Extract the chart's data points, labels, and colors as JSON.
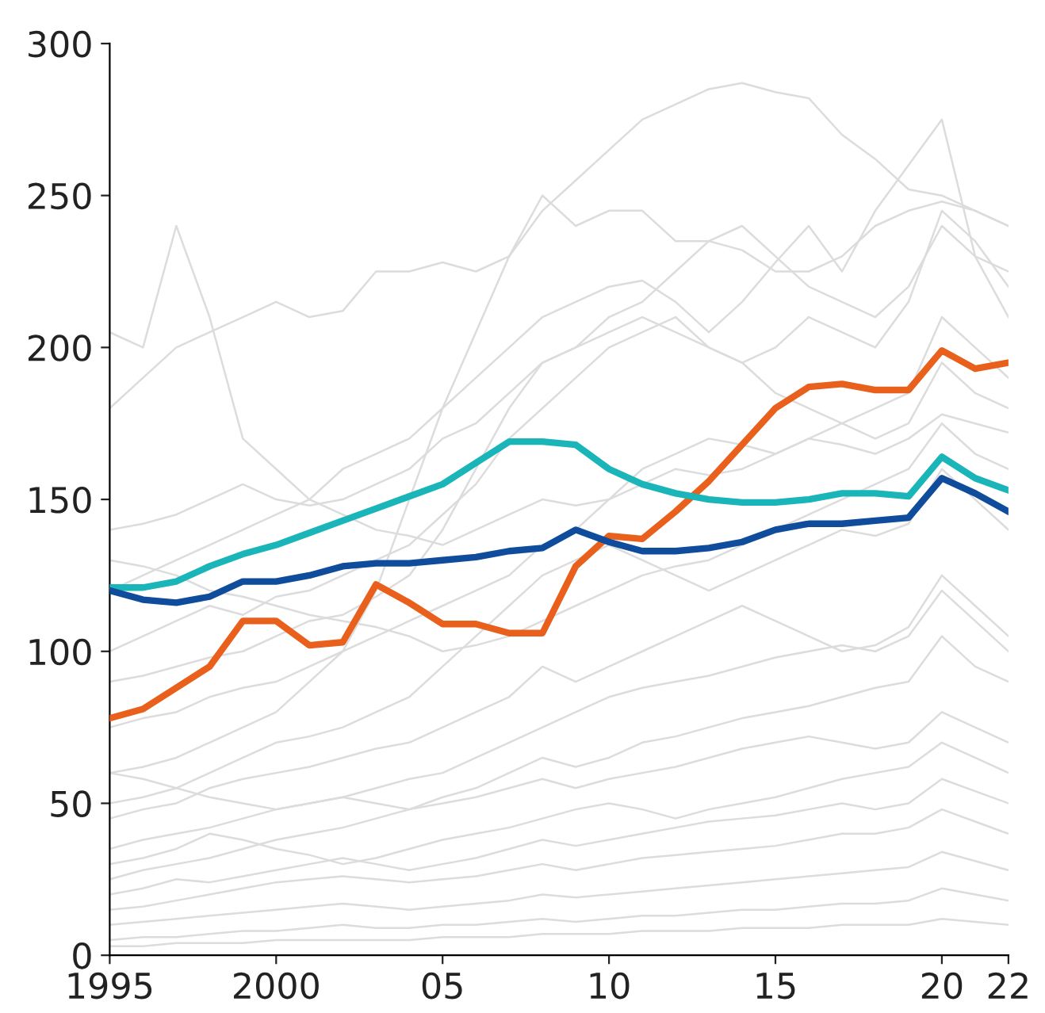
{
  "chart_data": {
    "type": "line",
    "x": [
      1995,
      1996,
      1997,
      1998,
      1999,
      2000,
      2001,
      2002,
      2003,
      2004,
      2005,
      2006,
      2007,
      2008,
      2009,
      2010,
      2011,
      2012,
      2013,
      2014,
      2015,
      2016,
      2017,
      2018,
      2019,
      2020,
      2021,
      2022
    ],
    "xlim": [
      1995,
      2022
    ],
    "xticks": [
      1995,
      2000,
      {
        "value": 2005,
        "label": "05"
      },
      {
        "value": 2010,
        "label": "10"
      },
      {
        "value": 2015,
        "label": "15"
      },
      {
        "value": 2020,
        "label": "20"
      },
      {
        "value": 2022,
        "label": "22"
      }
    ],
    "ylim": [
      0,
      300
    ],
    "yticks": [
      0,
      50,
      100,
      150,
      200,
      250,
      300
    ],
    "grid": false,
    "marker": "none",
    "line_style": "solid",
    "series": [
      {
        "color": "#dcdcdc",
        "values": [
          60,
          62,
          65,
          70,
          75,
          80,
          90,
          100,
          120,
          150,
          180,
          205,
          230,
          245,
          255,
          265,
          275,
          280,
          285,
          287,
          284,
          282,
          270,
          262,
          252,
          250,
          245,
          240
        ]
      },
      {
        "color": "#dcdcdc",
        "values": [
          205,
          200,
          240,
          210,
          170,
          160,
          150,
          145,
          140,
          138,
          135,
          140,
          145,
          150,
          148,
          150,
          155,
          160,
          158,
          160,
          165,
          170,
          168,
          165,
          170,
          178,
          175,
          172
        ]
      },
      {
        "color": "#dcdcdc",
        "values": [
          180,
          190,
          200,
          205,
          210,
          215,
          210,
          212,
          225,
          225,
          228,
          225,
          230,
          250,
          240,
          245,
          245,
          235,
          235,
          232,
          225,
          225,
          230,
          240,
          245,
          248,
          245,
          240
        ]
      },
      {
        "color": "#dcdcdc",
        "values": [
          120,
          125,
          130,
          135,
          140,
          145,
          150,
          160,
          165,
          170,
          180,
          190,
          200,
          210,
          215,
          220,
          222,
          215,
          205,
          215,
          228,
          240,
          225,
          245,
          260,
          275,
          230,
          210
        ]
      },
      {
        "color": "#dcdcdc",
        "values": [
          90,
          92,
          95,
          98,
          100,
          105,
          110,
          112,
          118,
          125,
          140,
          160,
          180,
          195,
          200,
          205,
          210,
          205,
          200,
          195,
          200,
          210,
          205,
          200,
          215,
          245,
          235,
          220
        ]
      },
      {
        "color": "#dcdcdc",
        "values": [
          140,
          142,
          145,
          150,
          155,
          150,
          148,
          150,
          155,
          160,
          170,
          175,
          185,
          195,
          200,
          210,
          215,
          225,
          235,
          240,
          230,
          220,
          215,
          210,
          220,
          240,
          230,
          225
        ]
      },
      {
        "color": "#dcdcdc",
        "values": [
          100,
          105,
          110,
          115,
          112,
          118,
          120,
          125,
          130,
          135,
          145,
          155,
          170,
          180,
          190,
          200,
          205,
          210,
          200,
          195,
          185,
          180,
          175,
          170,
          175,
          195,
          185,
          180
        ]
      },
      {
        "color": "#dcdcdc",
        "values": [
          75,
          78,
          80,
          85,
          88,
          90,
          95,
          100,
          105,
          110,
          115,
          120,
          125,
          135,
          140,
          150,
          160,
          165,
          170,
          168,
          165,
          170,
          175,
          180,
          185,
          210,
          200,
          190
        ]
      },
      {
        "color": "#dcdcdc",
        "values": [
          130,
          128,
          125,
          120,
          118,
          115,
          112,
          110,
          108,
          105,
          100,
          102,
          105,
          110,
          115,
          120,
          125,
          128,
          130,
          135,
          140,
          145,
          150,
          155,
          160,
          175,
          165,
          160
        ]
      },
      {
        "color": "#dcdcdc",
        "values": [
          50,
          52,
          55,
          60,
          65,
          70,
          72,
          75,
          80,
          85,
          95,
          105,
          115,
          125,
          130,
          135,
          130,
          125,
          120,
          125,
          130,
          135,
          140,
          138,
          142,
          160,
          150,
          140
        ]
      },
      {
        "color": "#dcdcdc",
        "values": [
          45,
          48,
          50,
          55,
          58,
          60,
          62,
          65,
          68,
          70,
          75,
          80,
          85,
          95,
          90,
          95,
          100,
          105,
          110,
          115,
          110,
          105,
          100,
          102,
          108,
          125,
          115,
          105
        ]
      },
      {
        "color": "#dcdcdc",
        "values": [
          60,
          58,
          55,
          52,
          50,
          48,
          50,
          52,
          55,
          58,
          60,
          65,
          70,
          75,
          80,
          85,
          88,
          90,
          92,
          95,
          98,
          100,
          102,
          100,
          105,
          120,
          110,
          100
        ]
      },
      {
        "color": "#dcdcdc",
        "values": [
          35,
          38,
          40,
          42,
          45,
          48,
          50,
          52,
          50,
          48,
          52,
          55,
          60,
          65,
          62,
          65,
          70,
          72,
          75,
          78,
          80,
          82,
          85,
          88,
          90,
          105,
          95,
          90
        ]
      },
      {
        "color": "#dcdcdc",
        "values": [
          25,
          28,
          30,
          32,
          35,
          38,
          40,
          42,
          45,
          48,
          50,
          52,
          55,
          58,
          55,
          58,
          60,
          62,
          65,
          68,
          70,
          72,
          70,
          68,
          70,
          80,
          75,
          70
        ]
      },
      {
        "color": "#dcdcdc",
        "values": [
          30,
          32,
          35,
          40,
          38,
          35,
          33,
          30,
          32,
          35,
          38,
          40,
          42,
          45,
          48,
          50,
          48,
          45,
          48,
          50,
          52,
          55,
          58,
          60,
          62,
          70,
          65,
          60
        ]
      },
      {
        "color": "#dcdcdc",
        "values": [
          20,
          22,
          25,
          24,
          26,
          28,
          30,
          32,
          30,
          28,
          30,
          32,
          35,
          38,
          36,
          38,
          40,
          42,
          44,
          45,
          46,
          48,
          50,
          48,
          50,
          58,
          54,
          50
        ]
      },
      {
        "color": "#dcdcdc",
        "values": [
          15,
          16,
          18,
          20,
          22,
          24,
          25,
          26,
          25,
          24,
          25,
          26,
          28,
          30,
          28,
          30,
          32,
          33,
          34,
          35,
          36,
          38,
          40,
          40,
          42,
          48,
          44,
          40
        ]
      },
      {
        "color": "#dcdcdc",
        "values": [
          10,
          11,
          12,
          13,
          14,
          15,
          16,
          17,
          16,
          15,
          16,
          17,
          18,
          20,
          19,
          20,
          21,
          22,
          23,
          24,
          25,
          26,
          27,
          28,
          29,
          34,
          31,
          28
        ]
      },
      {
        "color": "#dcdcdc",
        "values": [
          5,
          6,
          6,
          7,
          8,
          8,
          9,
          10,
          9,
          9,
          10,
          10,
          11,
          12,
          11,
          12,
          13,
          13,
          14,
          15,
          15,
          16,
          17,
          17,
          18,
          22,
          20,
          18
        ]
      },
      {
        "color": "#dcdcdc",
        "values": [
          3,
          3,
          4,
          4,
          4,
          5,
          5,
          5,
          5,
          5,
          6,
          6,
          6,
          7,
          7,
          7,
          8,
          8,
          8,
          9,
          9,
          9,
          10,
          10,
          10,
          12,
          11,
          10
        ]
      },
      {
        "color": "#e8601c",
        "values": [
          78,
          81,
          88,
          95,
          110,
          110,
          102,
          103,
          122,
          116,
          109,
          109,
          106,
          106,
          128,
          138,
          137,
          146,
          156,
          168,
          180,
          187,
          188,
          186,
          186,
          199,
          193,
          195
        ]
      },
      {
        "color": "#1ab5b8",
        "values": [
          121,
          121,
          123,
          128,
          132,
          135,
          139,
          143,
          147,
          151,
          155,
          162,
          169,
          169,
          168,
          160,
          155,
          152,
          150,
          149,
          149,
          150,
          152,
          152,
          151,
          164,
          157,
          153
        ]
      },
      {
        "color": "#0f4c9c",
        "values": [
          120,
          117,
          116,
          118,
          123,
          123,
          125,
          128,
          129,
          129,
          130,
          131,
          133,
          134,
          140,
          136,
          133,
          133,
          134,
          136,
          140,
          142,
          142,
          143,
          144,
          157,
          152,
          146
        ]
      }
    ]
  }
}
